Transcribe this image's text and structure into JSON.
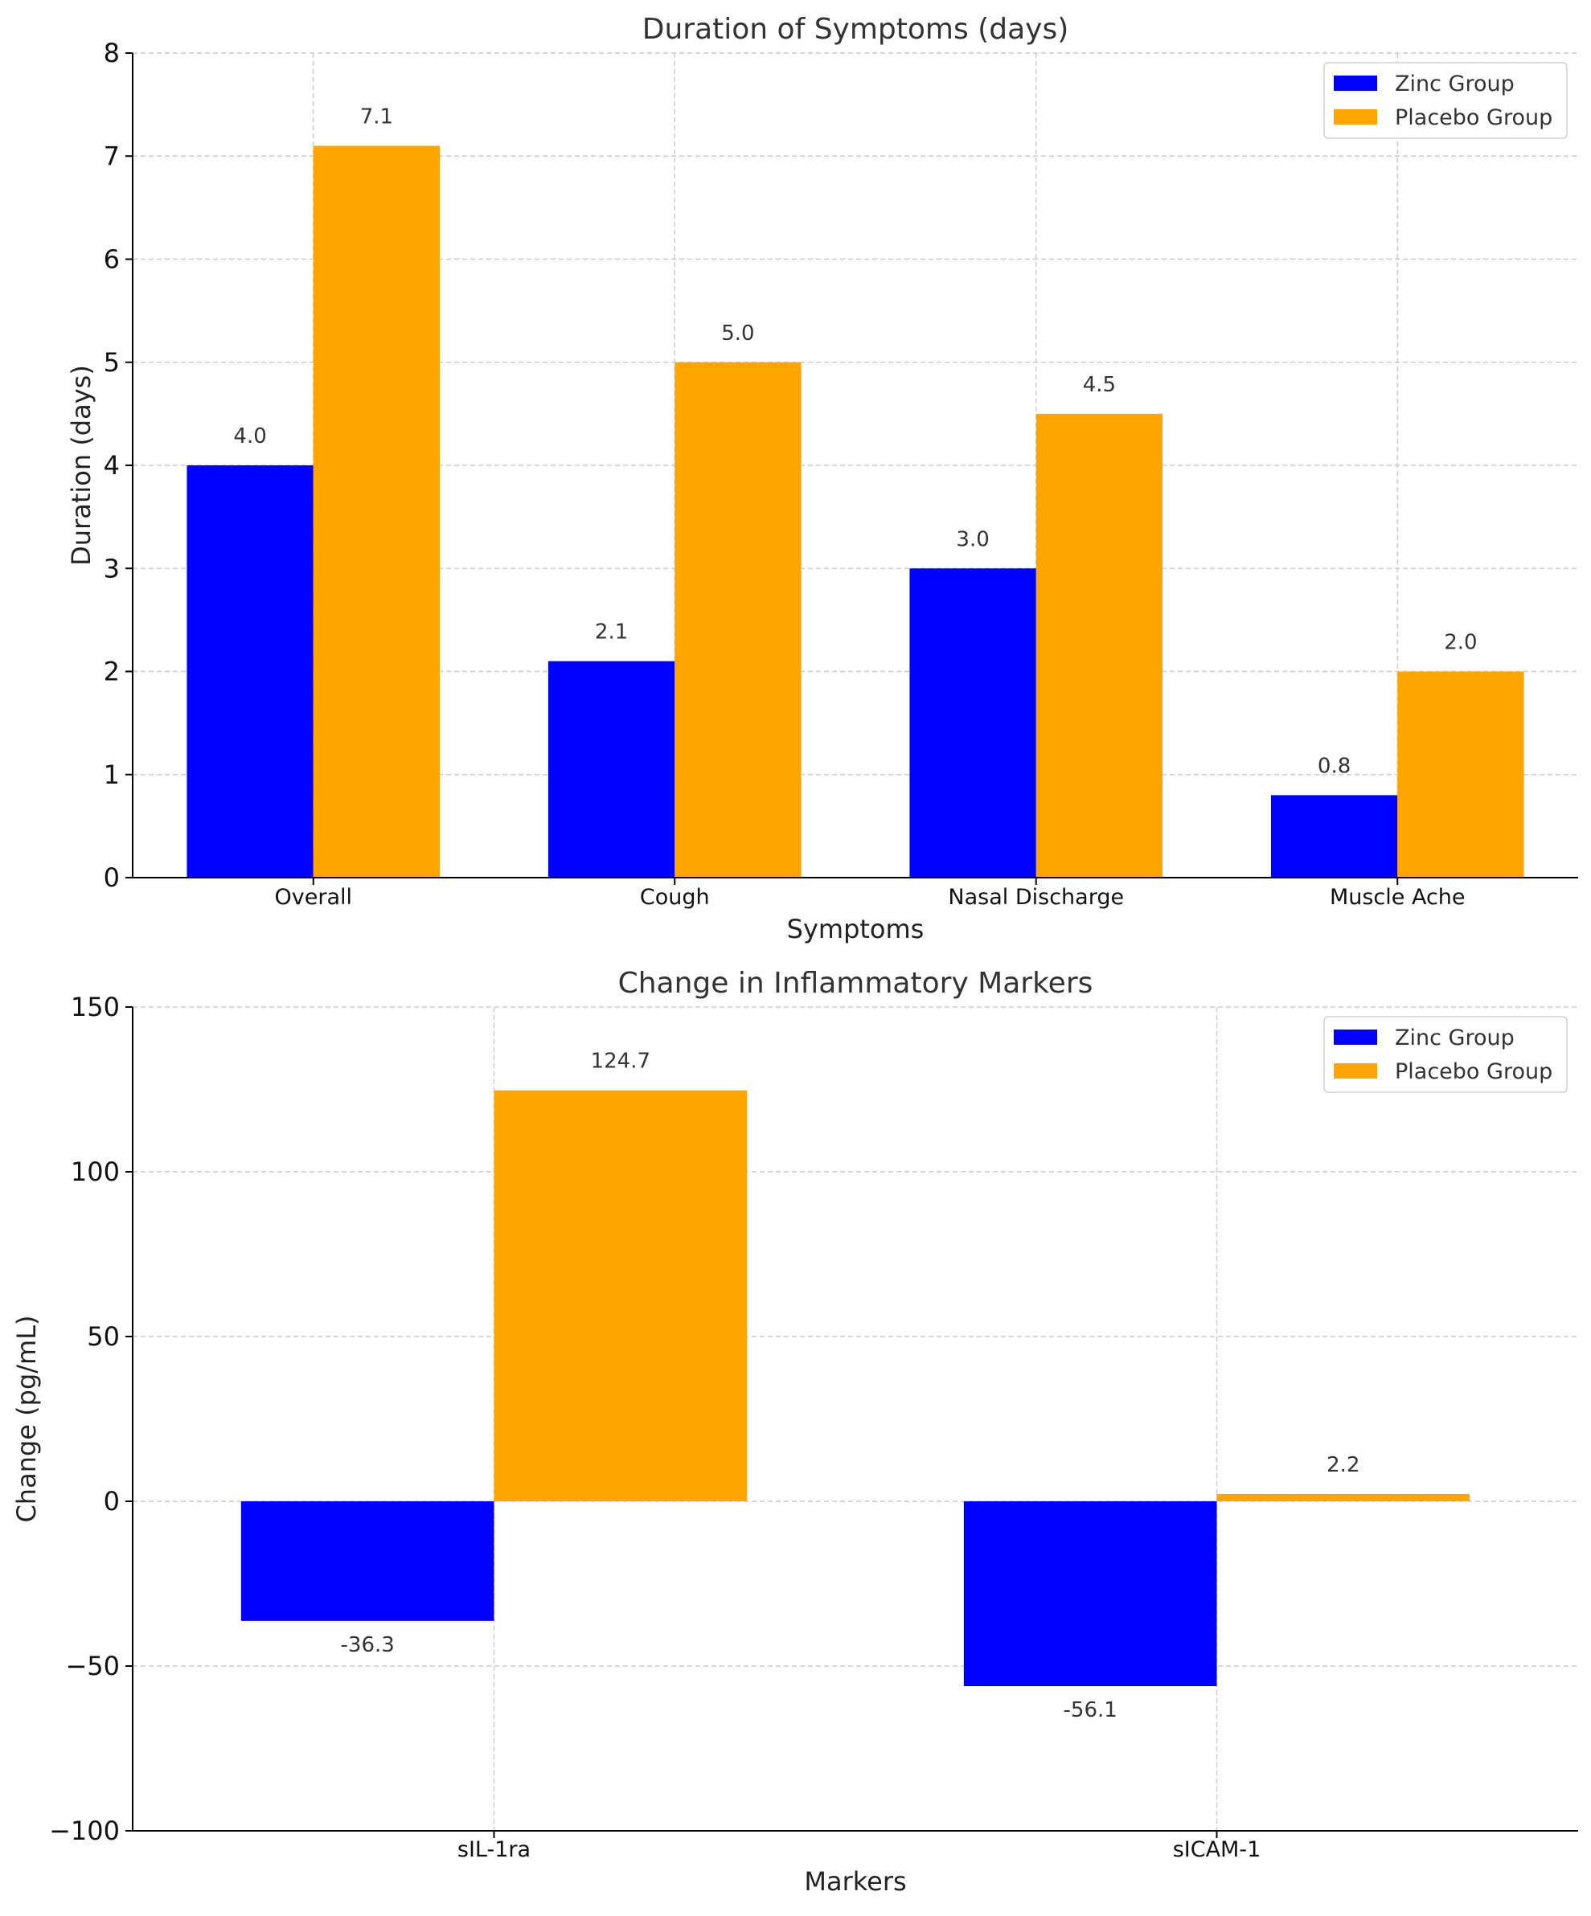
{
  "chart_data": [
    {
      "type": "bar",
      "title": "Duration of Symptoms (days)",
      "xlabel": "Symptoms",
      "ylabel": "Duration (days)",
      "categories": [
        "Overall",
        "Cough",
        "Nasal Discharge",
        "Muscle Ache"
      ],
      "series": [
        {
          "name": "Zinc Group",
          "color": "#0000ff",
          "values": [
            4.0,
            2.1,
            3.0,
            0.8
          ],
          "labels": [
            "4.0",
            "2.1",
            "3.0",
            "0.8"
          ]
        },
        {
          "name": "Placebo Group",
          "color": "#ffa500",
          "values": [
            7.1,
            5.0,
            4.5,
            2.0
          ],
          "labels": [
            "7.1",
            "5.0",
            "4.5",
            "2.0"
          ]
        }
      ],
      "ylim": [
        0,
        8
      ],
      "yticks": [
        0,
        1,
        2,
        3,
        4,
        5,
        6,
        7,
        8
      ],
      "ytick_labels": [
        "0",
        "1",
        "2",
        "3",
        "4",
        "5",
        "6",
        "7",
        "8"
      ],
      "grid": true,
      "legend": "top-right"
    },
    {
      "type": "bar",
      "title": "Change in Inflammatory Markers",
      "xlabel": "Markers",
      "ylabel": "Change (pg/mL)",
      "categories": [
        "sIL-1ra",
        "sICAM-1"
      ],
      "series": [
        {
          "name": "Zinc Group",
          "color": "#0000ff",
          "values": [
            -36.3,
            -56.1
          ],
          "labels": [
            "-36.3",
            "-56.1"
          ]
        },
        {
          "name": "Placebo Group",
          "color": "#ffa500",
          "values": [
            124.7,
            2.2
          ],
          "labels": [
            "124.7",
            "2.2"
          ]
        }
      ],
      "ylim": [
        -100,
        150
      ],
      "yticks": [
        -100,
        -50,
        0,
        50,
        100,
        150
      ],
      "ytick_labels": [
        "−100",
        "−50",
        "0",
        "50",
        "100",
        "150"
      ],
      "grid": true,
      "legend": "top-right"
    }
  ]
}
